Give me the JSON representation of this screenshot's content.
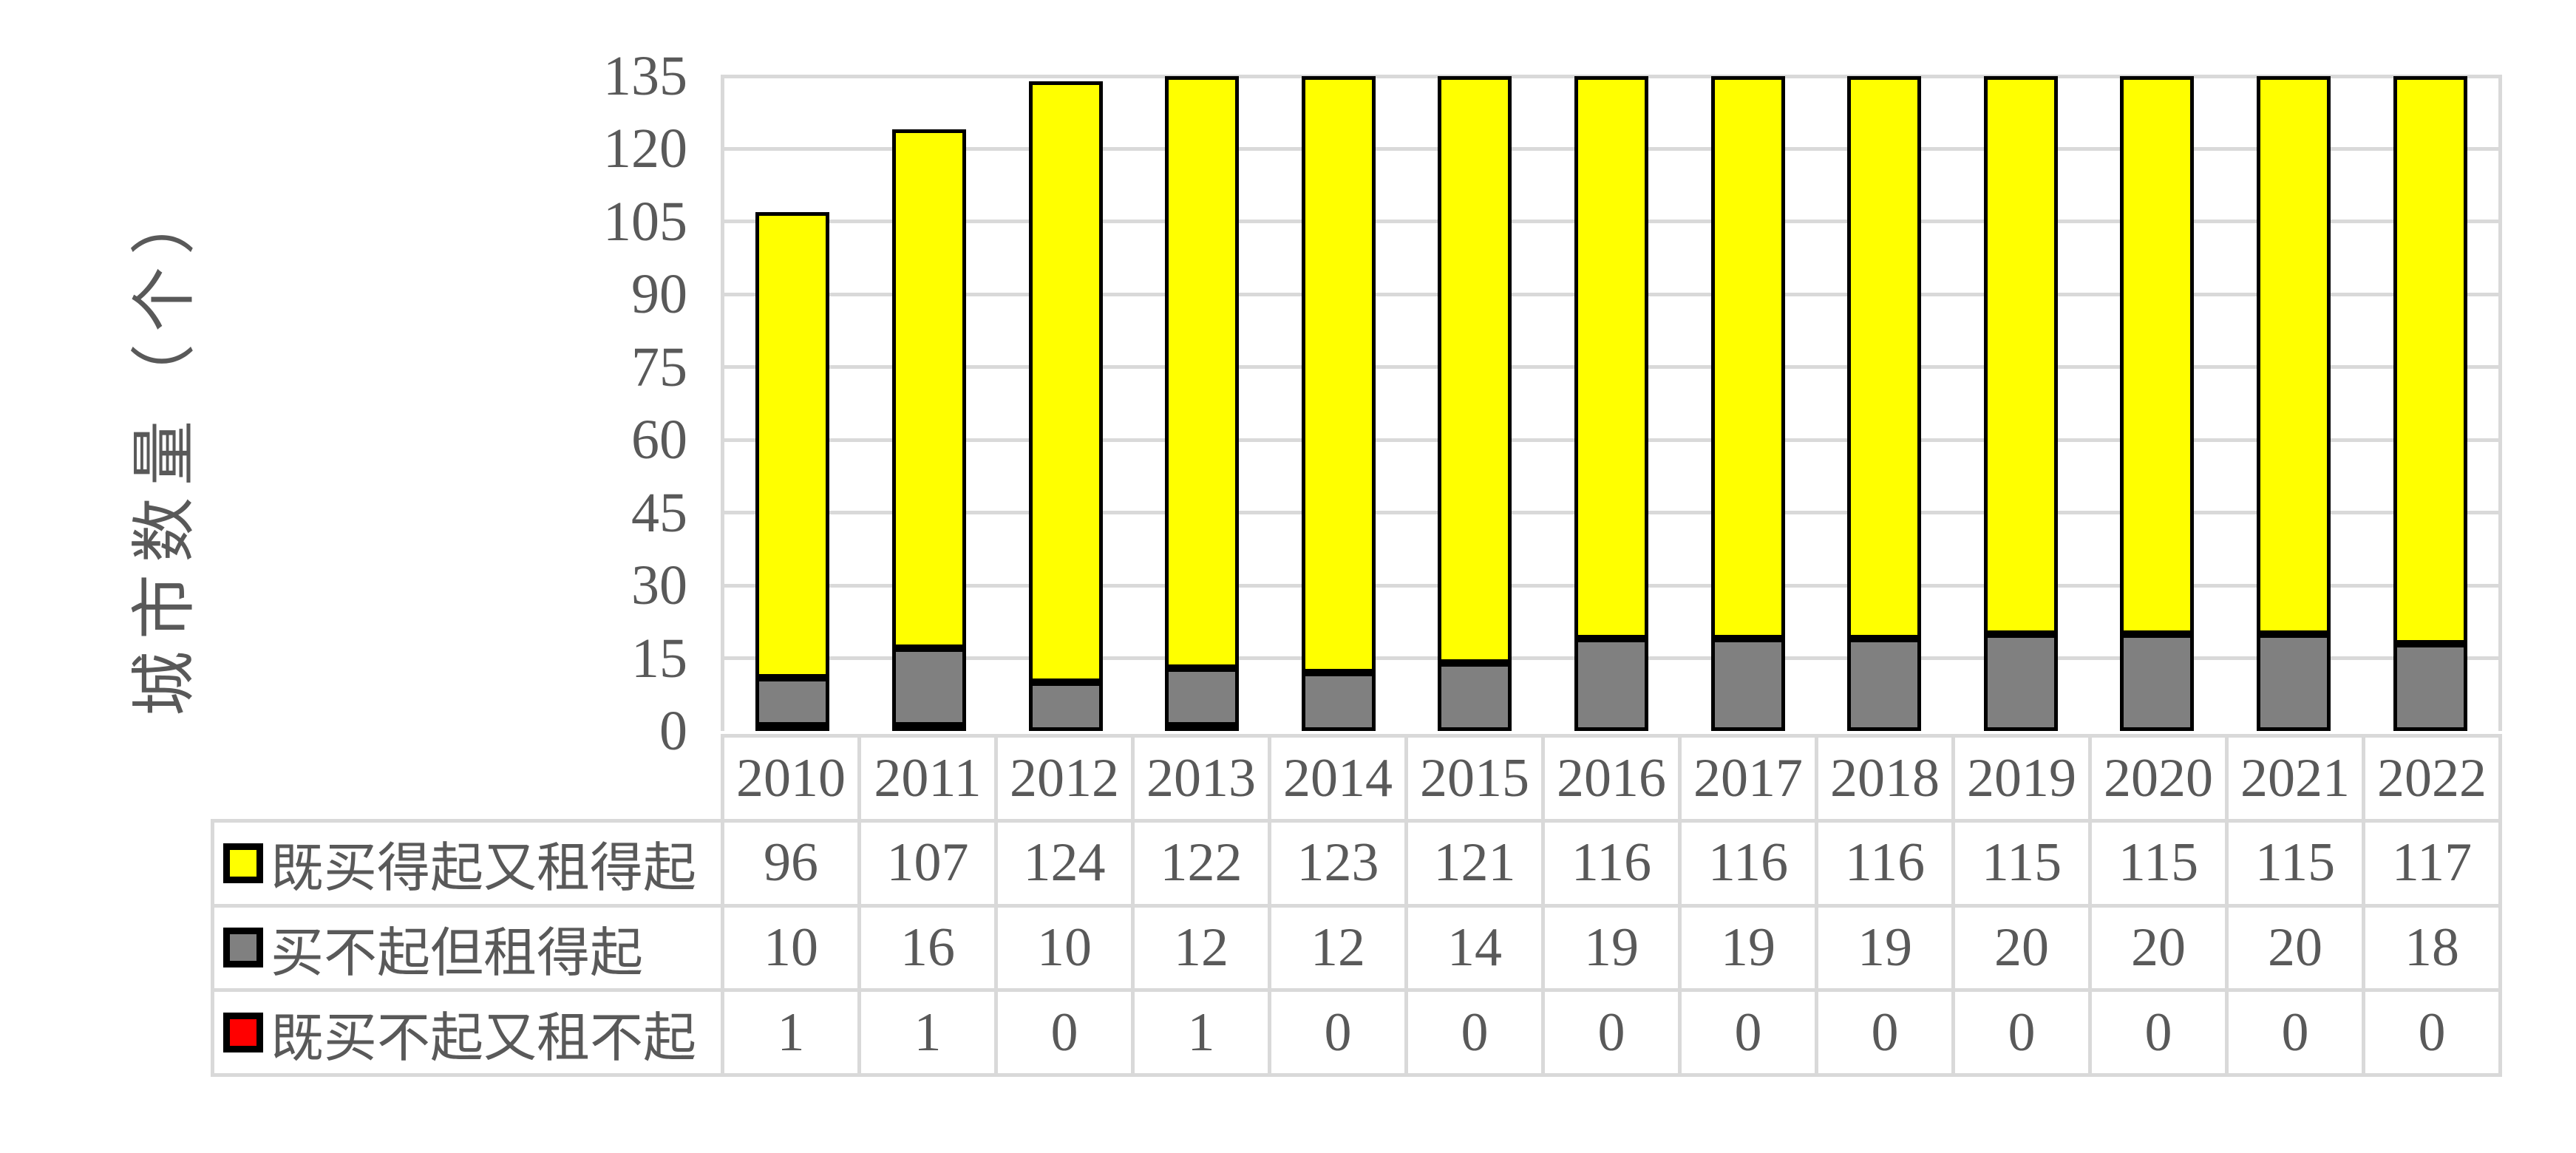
{
  "chart_data": {
    "type": "bar",
    "stacked": true,
    "title": "",
    "xlabel": "",
    "ylabel": "城市数量（个）",
    "ylim": [
      0,
      135
    ],
    "yticks": [
      0,
      15,
      30,
      45,
      60,
      75,
      90,
      105,
      120,
      135
    ],
    "grid": "horizontal",
    "legend_position": "left-column-of-data-table",
    "categories": [
      "2010",
      "2011",
      "2012",
      "2013",
      "2014",
      "2015",
      "2016",
      "2017",
      "2018",
      "2019",
      "2020",
      "2021",
      "2022"
    ],
    "series": [
      {
        "name": "既买得起又租得起",
        "color": "#FFFF00",
        "values": [
          96,
          107,
          124,
          122,
          123,
          121,
          116,
          116,
          116,
          115,
          115,
          115,
          117
        ]
      },
      {
        "name": "买不起但租得起",
        "color": "#808080",
        "values": [
          10,
          16,
          10,
          12,
          12,
          14,
          19,
          19,
          19,
          20,
          20,
          20,
          18
        ]
      },
      {
        "name": "既买不起又租不起",
        "color": "#FF0000",
        "values": [
          1,
          1,
          0,
          1,
          0,
          0,
          0,
          0,
          0,
          0,
          0,
          0,
          0
        ]
      }
    ],
    "stack_order_bottom_to_top": [
      "既买不起又租不起",
      "买不起但租得起",
      "既买得起又租得起"
    ],
    "bar_outline_color": "#000000"
  },
  "styles": {
    "text_color": "#595959",
    "grid_color": "#D9D9D9",
    "background_color": "#FFFFFF"
  }
}
